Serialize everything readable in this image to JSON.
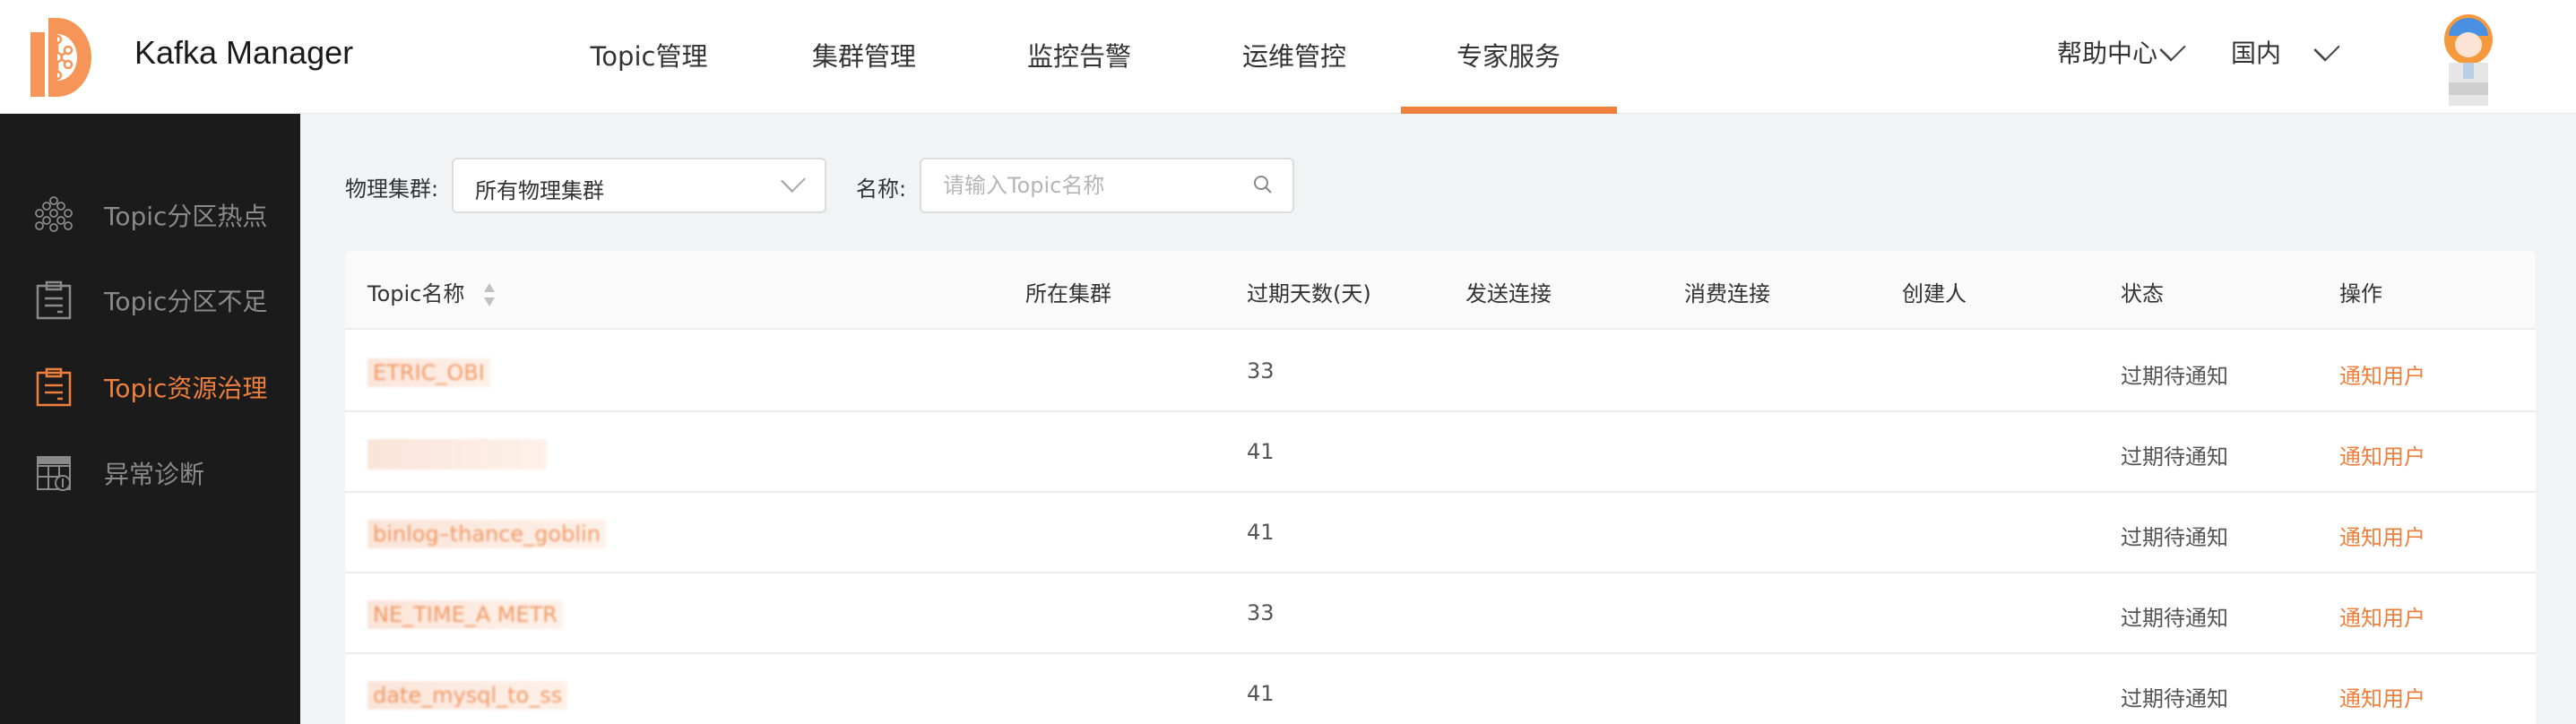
{
  "app": {
    "title": "Kafka Manager",
    "accent": "#ee7f3d"
  },
  "nav": [
    {
      "label": "Topic管理"
    },
    {
      "label": "集群管理"
    },
    {
      "label": "监控告警"
    },
    {
      "label": "运维管控"
    },
    {
      "label": "专家服务",
      "active": true
    }
  ],
  "header_right": {
    "help": "帮助中心",
    "region": "国内"
  },
  "sidebar": {
    "items": [
      {
        "label": "Topic分区热点",
        "icon": "hexagon-cluster-icon"
      },
      {
        "label": "Topic分区不足",
        "icon": "clipboard-icon"
      },
      {
        "label": "Topic资源治理",
        "icon": "clipboard-icon",
        "active": true
      },
      {
        "label": "异常诊断",
        "icon": "table-dollar-icon"
      }
    ]
  },
  "filters": {
    "cluster_label": "物理集群:",
    "cluster_value": "所有物理集群",
    "name_label": "名称:",
    "name_placeholder": "请输入Topic名称"
  },
  "table": {
    "columns": [
      "Topic名称",
      "所在集群",
      "过期天数(天)",
      "发送连接",
      "消费连接",
      "创建人",
      "状态",
      "操作"
    ],
    "rows": [
      {
        "topic": "ETRIC_OBI",
        "cluster": "",
        "days": "33",
        "send": "",
        "consume": "",
        "creator": "",
        "status": "过期待通知",
        "action": "通知用户"
      },
      {
        "topic": "",
        "cluster": "",
        "days": "41",
        "send": "",
        "consume": "",
        "creator": "",
        "status": "过期待通知",
        "action": "通知用户"
      },
      {
        "topic": "binlog–thance_goblin",
        "cluster": "",
        "days": "41",
        "send": "",
        "consume": "",
        "creator": "",
        "status": "过期待通知",
        "action": "通知用户"
      },
      {
        "topic": "NE_TIME_A METR",
        "cluster": "",
        "days": "33",
        "send": "",
        "consume": "",
        "creator": "",
        "status": "过期待通知",
        "action": "通知用户"
      },
      {
        "topic": "date_mysql_to_ss",
        "cluster": "",
        "days": "41",
        "send": "",
        "consume": "",
        "creator": "",
        "status": "过期待通知",
        "action": "通知用户"
      }
    ]
  }
}
